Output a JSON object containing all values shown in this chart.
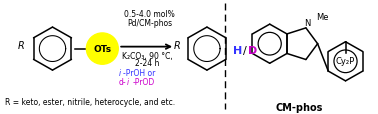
{
  "background_color": "#ffffff",
  "dashed_line_x": 0.595,
  "cond_line1": "0.5-4.0 mol%",
  "cond_line2": "Pd/CM-phos",
  "cond_line3": "K₂CO₃, 90 °C,",
  "cond_line4": "2-24 h",
  "iproh_color": "#3333ff",
  "diprod_color": "#cc00cc",
  "hd_h_color": "#3333ff",
  "hd_d_color": "#cc00cc",
  "ots_bg": "#ffff00",
  "footer_text": "R = keto, ester, nitrile, heterocycle, and etc.",
  "cmphos_text": "CM-phos",
  "me_text": "Me",
  "cy2p_text": "Cy₂P",
  "figsize": [
    3.78,
    1.15
  ],
  "dpi": 100
}
